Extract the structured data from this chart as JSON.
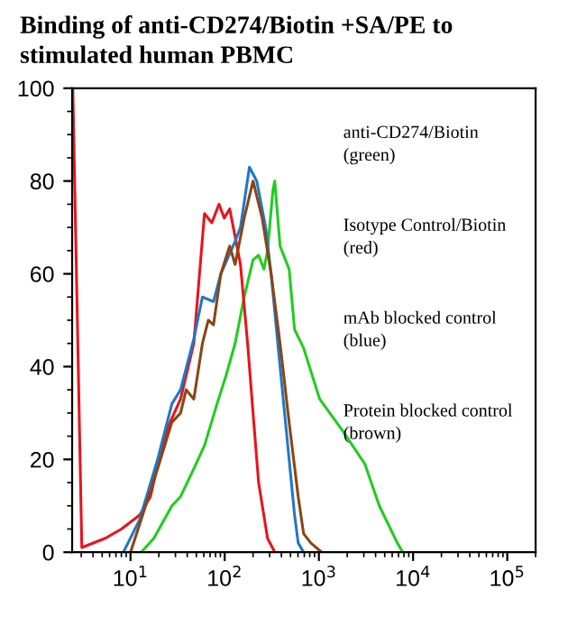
{
  "chart_data": {
    "type": "line",
    "title": "Binding of anti-CD274/Biotin +SA/PE to\nstimulated human PBMC",
    "log": "x",
    "xlim": [
      2.4,
      200000
    ],
    "ylim": [
      0,
      100
    ],
    "xticks": [
      {
        "value": 10,
        "label": "10$^{1}$"
      },
      {
        "value": 100,
        "label": "10$^{2}$"
      },
      {
        "value": 1000,
        "label": "10$^{3}$"
      },
      {
        "value": 10000,
        "label": "10$^{4}$"
      },
      {
        "value": 100000,
        "label": "10$^{5}$"
      }
    ],
    "yticks": [
      0,
      20,
      40,
      60,
      80,
      100
    ],
    "grid": false,
    "marker": "none",
    "line_style": "solid",
    "annotations": [
      "anti-CD274/Biotin\n(green)",
      "Isotype Control/Biotin\n(red)",
      "mAb blocked control\n(blue)",
      "Protein blocked control\n(brown)"
    ],
    "series": [
      {
        "color": "#22cc22",
        "x": [
          13.0,
          17.7,
          27.5,
          34,
          47,
          61,
          83,
          103,
          129,
          161,
          200,
          229,
          261,
          285,
          325,
          340,
          387,
          483,
          552,
          688,
          1020,
          1810,
          3080,
          4380,
          6800,
          7770
        ],
        "values": [
          0,
          3,
          10,
          12,
          18,
          23,
          32,
          38,
          45,
          55,
          63,
          64,
          61,
          65,
          78,
          80,
          66,
          61,
          48,
          44,
          33,
          26,
          19,
          10,
          2,
          0
        ]
      },
      {
        "color": "#e8141c",
        "x": [
          2.44,
          3.04,
          5.4,
          8.0,
          12.5,
          16.3,
          20,
          25,
          34,
          47,
          61,
          73,
          87,
          99,
          113,
          129,
          147,
          175,
          200,
          229,
          285,
          340
        ],
        "values": [
          100,
          1,
          3,
          5,
          8,
          12,
          20,
          27,
          33,
          45,
          73,
          71,
          75,
          72,
          74,
          68,
          62,
          45,
          30,
          15,
          3,
          0
        ]
      },
      {
        "color": "#1f78c8",
        "x": [
          8.4,
          12.5,
          19.4,
          27.5,
          34,
          47,
          58,
          76,
          91,
          129,
          147,
          183,
          219,
          272,
          311,
          387,
          483,
          552,
          603,
          688
        ],
        "values": [
          0,
          7,
          20,
          32,
          35,
          46,
          55,
          54,
          60,
          67,
          70,
          83,
          80,
          70,
          60,
          40,
          20,
          8,
          2,
          0
        ]
      },
      {
        "color": "#8b4513",
        "x": [
          10,
          12.5,
          19.4,
          27.5,
          34,
          39,
          47,
          58,
          67,
          76,
          91,
          113,
          129,
          161,
          200,
          250,
          311,
          387,
          483,
          603,
          688,
          820,
          1070
        ],
        "values": [
          0,
          6,
          18,
          28,
          30,
          35,
          33,
          45,
          50,
          49,
          60,
          66,
          62,
          72,
          80,
          72,
          60,
          45,
          28,
          12,
          4,
          2,
          0
        ]
      }
    ]
  }
}
